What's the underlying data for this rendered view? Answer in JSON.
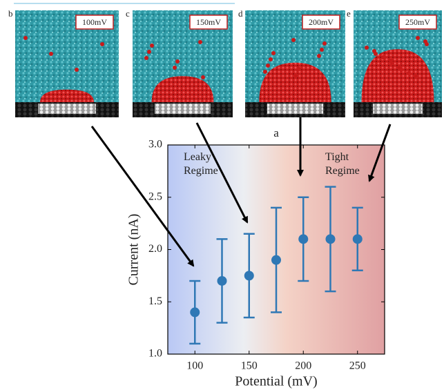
{
  "panels": [
    {
      "letter": "b",
      "label": "100mV"
    },
    {
      "letter": "c",
      "label": "150mV"
    },
    {
      "letter": "d",
      "label": "200mV"
    },
    {
      "letter": "e",
      "label": "250mV"
    }
  ],
  "chart_data": {
    "type": "errorbar",
    "title": "a",
    "x_label": "Potential (mV)",
    "y_label": "Current (nA)",
    "x": [
      100,
      125,
      150,
      175,
      200,
      225,
      250
    ],
    "series": [
      {
        "color": "#2f78b5",
        "values": [
          1.4,
          1.7,
          1.75,
          1.9,
          2.1,
          2.1,
          2.1
        ],
        "errors": [
          0.3,
          0.4,
          0.4,
          0.5,
          0.4,
          0.5,
          0.3
        ]
      }
    ],
    "xlim": [
      75,
      275
    ],
    "xticks": [
      100,
      150,
      200,
      250
    ],
    "ylim": [
      1.0,
      3.0
    ],
    "yticks": [
      {
        "value": 1.0,
        "label": "1.0"
      },
      {
        "value": 1.5,
        "label": "1.5"
      },
      {
        "value": 2.0,
        "label": "2.0"
      },
      {
        "value": 2.5,
        "label": "2.5"
      },
      {
        "value": 3.0,
        "label": "3.0"
      }
    ],
    "annotations": [
      "Leaky Regime",
      "Tight Regime"
    ]
  }
}
